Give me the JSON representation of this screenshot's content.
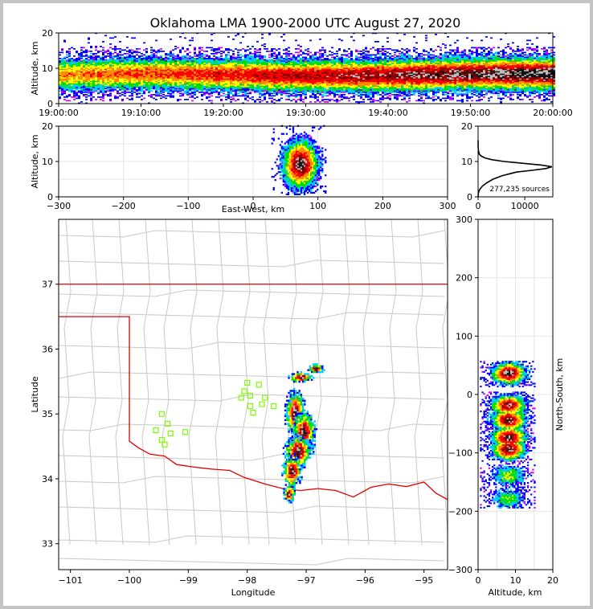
{
  "title": "Oklahoma LMA 1900-2000 UTC August 27, 2020",
  "chart_data": [
    {
      "name": "time-altitude",
      "type": "heatmap",
      "ylabel": "Altitude, km",
      "ylim": [
        0,
        20
      ],
      "y_ticks": [
        "0",
        "10",
        "20"
      ],
      "x_ticks": [
        "19:00:00",
        "19:10:00",
        "19:20:00",
        "19:30:00",
        "19:40:00",
        "19:50:00",
        "20:00:00"
      ],
      "xlim_minutes": [
        0,
        60
      ],
      "band_center_km": 8,
      "band_half_width_km": 4
    },
    {
      "name": "east-west-altitude",
      "type": "heatmap",
      "xlabel": "East-West, km",
      "ylabel": "Altitude, km",
      "xlim": [
        -300,
        300
      ],
      "ylim": [
        0,
        20
      ],
      "x_ticks": [
        "−300",
        "−200",
        "−100",
        "0",
        "100",
        "200",
        "300"
      ],
      "y_ticks": [
        "0",
        "10",
        "20"
      ],
      "core_x_km": 72,
      "core_alt_km": 9
    },
    {
      "name": "altitude-histogram",
      "type": "line",
      "ylim": [
        0,
        20
      ],
      "xlim": [
        0,
        16000
      ],
      "x_ticks": [
        "0",
        "10000"
      ],
      "y_ticks": [
        "0",
        "10",
        "20"
      ],
      "annotation": "277,235 sources",
      "profile": [
        [
          0,
          0
        ],
        [
          1,
          60
        ],
        [
          2,
          300
        ],
        [
          3,
          900
        ],
        [
          4,
          1900
        ],
        [
          5,
          3200
        ],
        [
          6,
          5200
        ],
        [
          7,
          8200
        ],
        [
          7.5,
          11500
        ],
        [
          8,
          14500
        ],
        [
          8.5,
          15800
        ],
        [
          9,
          13500
        ],
        [
          9.5,
          9500
        ],
        [
          10,
          5600
        ],
        [
          10.5,
          3000
        ],
        [
          11,
          1500
        ],
        [
          11.5,
          700
        ],
        [
          12,
          300
        ],
        [
          13,
          80
        ],
        [
          14,
          20
        ],
        [
          16,
          0
        ]
      ]
    },
    {
      "name": "plan-view-map",
      "type": "scatter",
      "xlabel": "Longitude",
      "ylabel": "Latitude",
      "xlim": [
        -101.2,
        -94.6
      ],
      "ylim": [
        32.6,
        38
      ],
      "x_ticks": [
        "−101",
        "−100",
        "−99",
        "−98",
        "−97",
        "−96",
        "−95"
      ],
      "y_ticks": [
        "33",
        "34",
        "35",
        "36",
        "37"
      ],
      "stations": [
        [
          -99.45,
          35.0
        ],
        [
          -99.35,
          34.85
        ],
        [
          -99.55,
          34.75
        ],
        [
          -99.3,
          34.7
        ],
        [
          -99.05,
          34.72
        ],
        [
          -99.45,
          34.6
        ],
        [
          -99.4,
          34.53
        ],
        [
          -98.0,
          35.48
        ],
        [
          -98.05,
          35.35
        ],
        [
          -97.8,
          35.45
        ],
        [
          -98.1,
          35.25
        ],
        [
          -97.95,
          35.28
        ],
        [
          -97.7,
          35.25
        ],
        [
          -97.95,
          35.12
        ],
        [
          -97.75,
          35.15
        ],
        [
          -97.9,
          35.02
        ],
        [
          -97.55,
          35.12
        ]
      ]
    },
    {
      "name": "altitude-north-south",
      "type": "heatmap",
      "xlabel": "Altitude, km",
      "ylabel": "North-South, km",
      "xlim": [
        0,
        20
      ],
      "ylim": [
        -300,
        300
      ],
      "x_ticks": [
        "0",
        "10",
        "20"
      ],
      "y_ticks": [
        "300",
        "200",
        "100",
        "0",
        "−100",
        "−200",
        "−300"
      ]
    }
  ]
}
